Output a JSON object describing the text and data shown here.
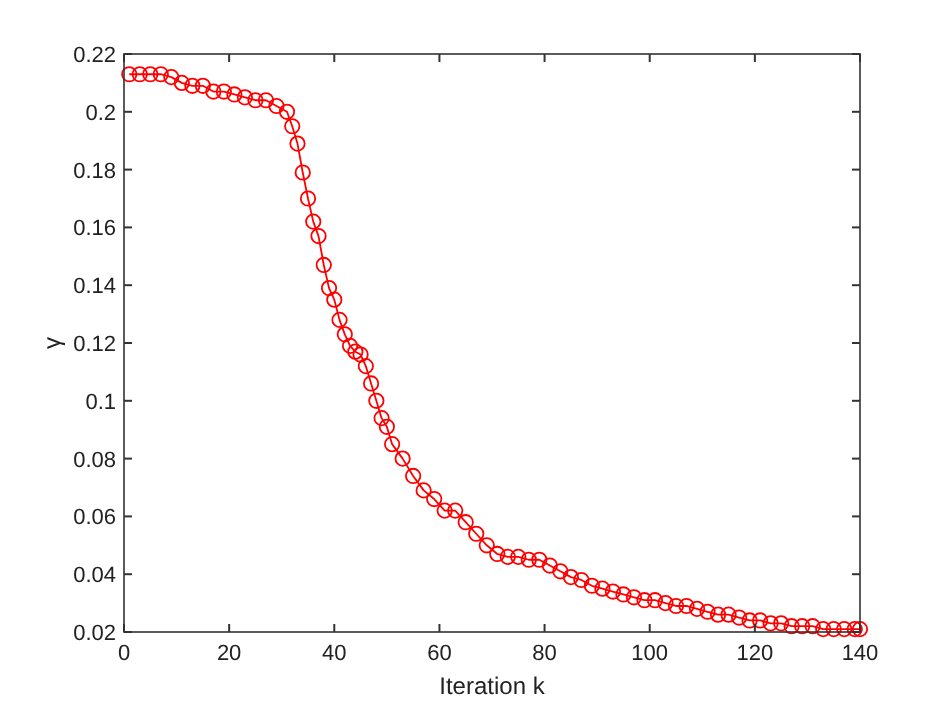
{
  "chart_data": {
    "type": "line",
    "xlabel": "Iteration k",
    "ylabel": "γ",
    "marker": "circle",
    "line_style": "solid",
    "grid": false,
    "xlim": [
      0,
      140
    ],
    "xticks": [
      0,
      20,
      40,
      60,
      80,
      100,
      120,
      140
    ],
    "ylim": [
      0.02,
      0.22
    ],
    "yticks": [
      0.02,
      0.04,
      0.06,
      0.08,
      0.1,
      0.12,
      0.14,
      0.16,
      0.18,
      0.2,
      0.22
    ],
    "x": [
      1,
      3,
      5,
      7,
      9,
      11,
      13,
      15,
      17,
      19,
      21,
      23,
      25,
      27,
      29,
      31,
      32,
      33,
      34,
      35,
      36,
      37,
      38,
      39,
      40,
      41,
      42,
      43,
      44,
      45,
      46,
      47,
      48,
      49,
      50,
      51,
      53,
      55,
      57,
      59,
      61,
      63,
      65,
      67,
      69,
      71,
      73,
      75,
      77,
      79,
      81,
      83,
      85,
      87,
      89,
      91,
      93,
      95,
      97,
      99,
      101,
      103,
      105,
      107,
      109,
      111,
      113,
      115,
      117,
      119,
      121,
      123,
      125,
      127,
      129,
      131,
      133,
      135,
      137,
      139,
      140
    ],
    "series": [
      {
        "color": "#ff0000",
        "values": [
          0.213,
          0.213,
          0.213,
          0.213,
          0.212,
          0.21,
          0.209,
          0.209,
          0.207,
          0.207,
          0.206,
          0.205,
          0.204,
          0.204,
          0.202,
          0.2,
          0.195,
          0.189,
          0.179,
          0.17,
          0.162,
          0.157,
          0.147,
          0.139,
          0.135,
          0.128,
          0.123,
          0.119,
          0.117,
          0.116,
          0.112,
          0.106,
          0.1,
          0.094,
          0.091,
          0.085,
          0.08,
          0.074,
          0.069,
          0.066,
          0.062,
          0.062,
          0.058,
          0.054,
          0.05,
          0.047,
          0.046,
          0.046,
          0.045,
          0.045,
          0.043,
          0.041,
          0.039,
          0.038,
          0.036,
          0.035,
          0.034,
          0.033,
          0.032,
          0.031,
          0.031,
          0.03,
          0.029,
          0.029,
          0.028,
          0.027,
          0.026,
          0.026,
          0.025,
          0.024,
          0.024,
          0.023,
          0.023,
          0.022,
          0.022,
          0.022,
          0.021,
          0.021,
          0.021,
          0.021,
          0.021
        ]
      }
    ]
  }
}
